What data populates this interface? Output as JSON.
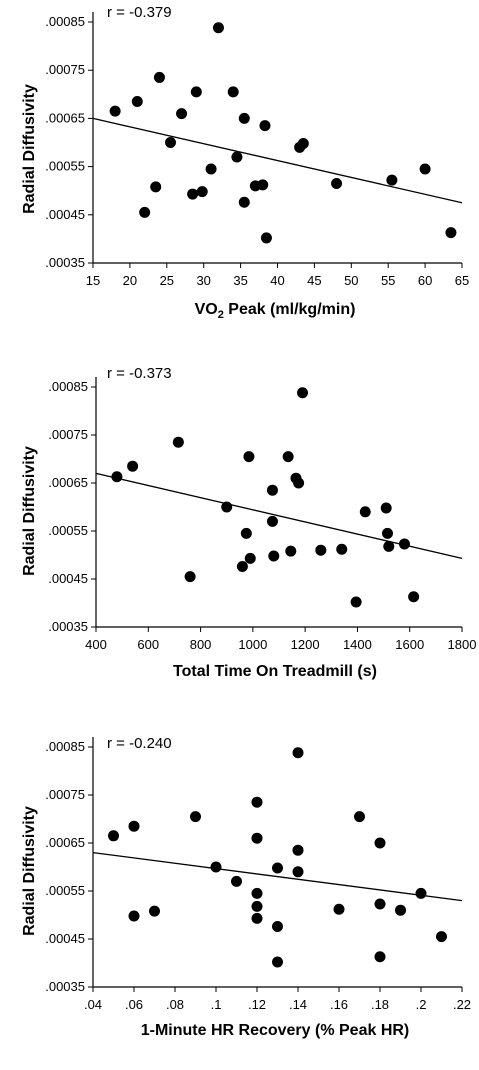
{
  "chart_data": [
    {
      "type": "scatter",
      "r_label": "r = -0.379",
      "ylabel": "Radial Diffusivity",
      "xlabel_main": "VO",
      "xlabel_sub": "2",
      "xlabel_rest": " Peak (ml/kg/min)",
      "xlim": [
        15,
        65
      ],
      "ylim": [
        0.00035,
        0.00085
      ],
      "xticks": [
        15,
        20,
        25,
        30,
        35,
        40,
        45,
        50,
        55,
        60,
        65
      ],
      "xtick_labels": [
        "15",
        "20",
        "25",
        "30",
        "35",
        "40",
        "45",
        "50",
        "55",
        "60",
        "65"
      ],
      "yticks": [
        0.00035,
        0.00045,
        0.00055,
        0.00065,
        0.00075,
        0.00085
      ],
      "ytick_labels": [
        ".00035",
        ".00045",
        ".00055",
        ".00065",
        ".00075",
        ".00085"
      ],
      "fit_line": [
        [
          15,
          0.00065
        ],
        [
          65,
          0.000475
        ]
      ],
      "points": [
        [
          18,
          0.000665
        ],
        [
          21,
          0.000685
        ],
        [
          22,
          0.000455
        ],
        [
          23.5,
          0.000508
        ],
        [
          24,
          0.000735
        ],
        [
          25.5,
          0.0006
        ],
        [
          27,
          0.00066
        ],
        [
          28.5,
          0.000493
        ],
        [
          29,
          0.000705
        ],
        [
          29.8,
          0.000498
        ],
        [
          31,
          0.000545
        ],
        [
          32,
          0.000838
        ],
        [
          34,
          0.000705
        ],
        [
          34.5,
          0.00057
        ],
        [
          35.5,
          0.00065
        ],
        [
          35.5,
          0.000476
        ],
        [
          37,
          0.00051
        ],
        [
          38,
          0.000512
        ],
        [
          38.3,
          0.000635
        ],
        [
          38.5,
          0.000402
        ],
        [
          43,
          0.00059
        ],
        [
          43.5,
          0.000598
        ],
        [
          48,
          0.000515
        ],
        [
          55.5,
          0.000522
        ],
        [
          60,
          0.000545
        ],
        [
          63.5,
          0.000413
        ]
      ]
    },
    {
      "type": "scatter",
      "r_label": "r = -0.373",
      "ylabel": "Radial Diffusivity",
      "xlabel_main": "Total Time On Treadmill (s)",
      "xlabel_sub": "",
      "xlabel_rest": "",
      "xlim": [
        400,
        1800
      ],
      "ylim": [
        0.00035,
        0.00085
      ],
      "xticks": [
        400,
        600,
        800,
        1000,
        1200,
        1400,
        1600,
        1800
      ],
      "xtick_labels": [
        "400",
        "600",
        "800",
        "1000",
        "1200",
        "1400",
        "1600",
        "1800"
      ],
      "yticks": [
        0.00035,
        0.00045,
        0.00055,
        0.00065,
        0.00075,
        0.00085
      ],
      "ytick_labels": [
        ".00035",
        ".00045",
        ".00055",
        ".00065",
        ".00075",
        ".00085"
      ],
      "fit_line": [
        [
          400,
          0.00067
        ],
        [
          1800,
          0.000493
        ]
      ],
      "points": [
        [
          480,
          0.000663
        ],
        [
          540,
          0.000685
        ],
        [
          715,
          0.000735
        ],
        [
          760,
          0.000455
        ],
        [
          900,
          0.0006
        ],
        [
          960,
          0.000476
        ],
        [
          975,
          0.000545
        ],
        [
          985,
          0.000705
        ],
        [
          990,
          0.000493
        ],
        [
          1075,
          0.000635
        ],
        [
          1075,
          0.00057
        ],
        [
          1080,
          0.000498
        ],
        [
          1135,
          0.000705
        ],
        [
          1145,
          0.000508
        ],
        [
          1165,
          0.00066
        ],
        [
          1175,
          0.00065
        ],
        [
          1190,
          0.000838
        ],
        [
          1260,
          0.00051
        ],
        [
          1340,
          0.000512
        ],
        [
          1395,
          0.000402
        ],
        [
          1430,
          0.00059
        ],
        [
          1510,
          0.000598
        ],
        [
          1515,
          0.000545
        ],
        [
          1520,
          0.000518
        ],
        [
          1580,
          0.000523
        ],
        [
          1615,
          0.000413
        ]
      ]
    },
    {
      "type": "scatter",
      "r_label": "r = -0.240",
      "ylabel": "Radial Diffusivity",
      "xlabel_main": "1-Minute HR Recovery (% Peak HR)",
      "xlabel_sub": "",
      "xlabel_rest": "",
      "xlim": [
        0.04,
        0.22
      ],
      "ylim": [
        0.00035,
        0.00085
      ],
      "xticks": [
        0.04,
        0.06,
        0.08,
        0.1,
        0.12,
        0.14,
        0.16,
        0.18,
        0.2,
        0.22
      ],
      "xtick_labels": [
        ".04",
        ".06",
        ".08",
        ".1",
        ".12",
        ".14",
        ".16",
        ".18",
        ".2",
        ".22"
      ],
      "yticks": [
        0.00035,
        0.00045,
        0.00055,
        0.00065,
        0.00075,
        0.00085
      ],
      "ytick_labels": [
        ".00035",
        ".00045",
        ".00055",
        ".00065",
        ".00075",
        ".00085"
      ],
      "fit_line": [
        [
          0.04,
          0.00063
        ],
        [
          0.22,
          0.00053
        ]
      ],
      "points": [
        [
          0.05,
          0.000665
        ],
        [
          0.06,
          0.000685
        ],
        [
          0.06,
          0.000498
        ],
        [
          0.07,
          0.000508
        ],
        [
          0.09,
          0.000705
        ],
        [
          0.1,
          0.0006
        ],
        [
          0.11,
          0.00057
        ],
        [
          0.12,
          0.000735
        ],
        [
          0.12,
          0.00066
        ],
        [
          0.12,
          0.000545
        ],
        [
          0.12,
          0.000518
        ],
        [
          0.12,
          0.000493
        ],
        [
          0.13,
          0.000598
        ],
        [
          0.13,
          0.000476
        ],
        [
          0.13,
          0.000402
        ],
        [
          0.14,
          0.000838
        ],
        [
          0.14,
          0.000635
        ],
        [
          0.14,
          0.00059
        ],
        [
          0.16,
          0.000512
        ],
        [
          0.17,
          0.000705
        ],
        [
          0.18,
          0.00065
        ],
        [
          0.18,
          0.000523
        ],
        [
          0.18,
          0.000413
        ],
        [
          0.19,
          0.00051
        ],
        [
          0.2,
          0.000545
        ],
        [
          0.21,
          0.000455
        ]
      ]
    }
  ]
}
